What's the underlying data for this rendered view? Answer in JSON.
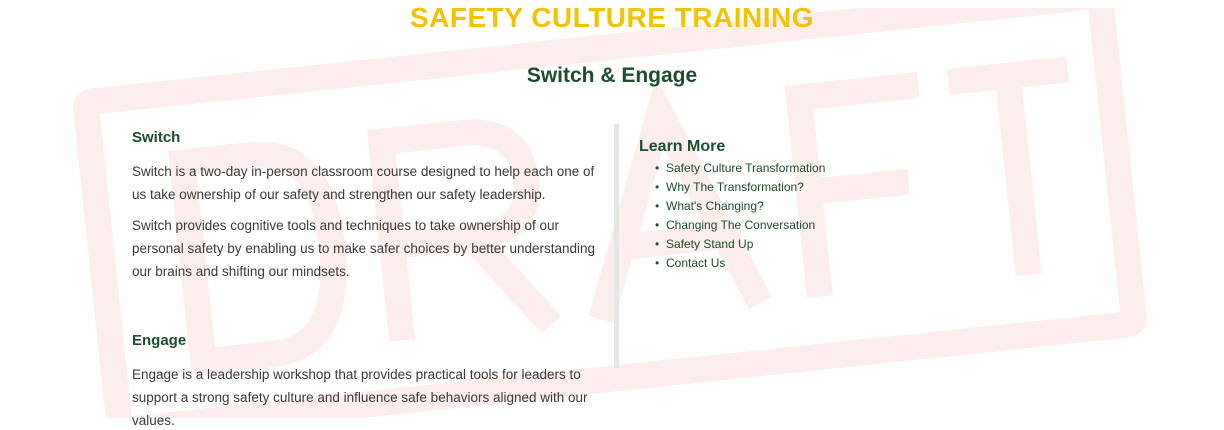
{
  "header": {
    "title": "SAFETY CULTURE TRAINING",
    "subtitle": "Switch & Engage"
  },
  "switch_section": {
    "heading": "Switch",
    "paragraph_1": "Switch is a two-day in-person classroom course designed to help each one of us take ownership of our safety and strengthen our safety leadership.",
    "paragraph_2": "Switch provides cognitive tools and techniques to take ownership of our personal safety by enabling us to make safer choices by better understanding our brains and shifting our mindsets."
  },
  "engage_section": {
    "heading": "Engage",
    "paragraph_1": "Engage is a leadership workshop that provides practical tools for leaders to support a strong safety culture and influence safe behaviors aligned with our values."
  },
  "learn_more": {
    "heading": "Learn More",
    "links": [
      "Safety Culture Transformation",
      "Why The Transformation?",
      "What's Changing?",
      "Changing The Conversation",
      "Safety Stand Up",
      "Contact Us"
    ]
  },
  "watermark": {
    "text": "DRAFT"
  },
  "colors": {
    "title_yellow": "#f2c300",
    "heading_green": "#1d4d2c",
    "body_text": "#3a3a3a",
    "divider": "#e6e6e6",
    "watermark": "#fbeeec"
  }
}
